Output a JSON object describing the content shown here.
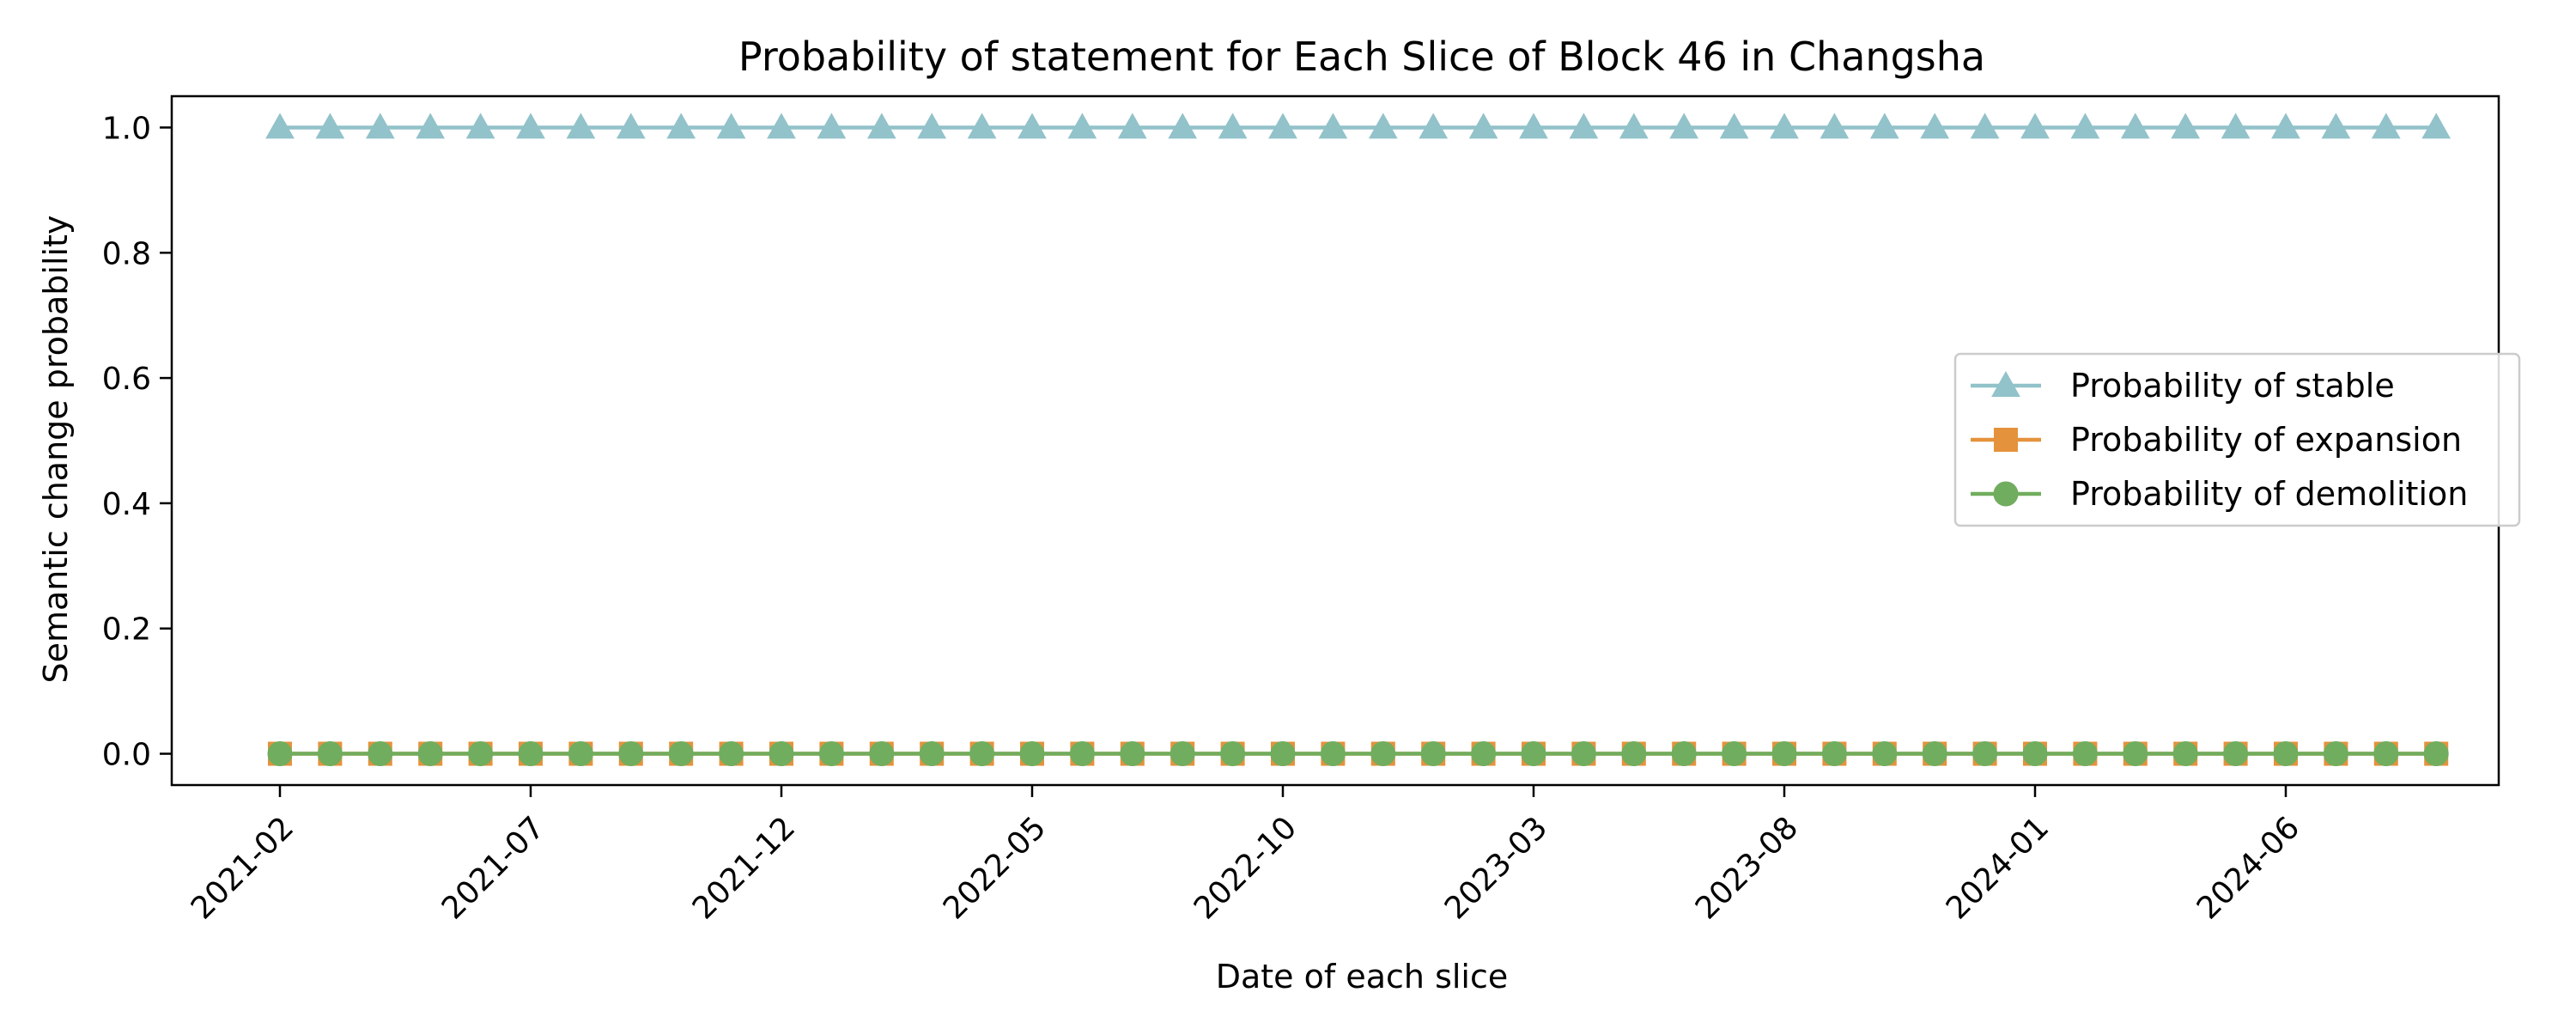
{
  "chart_data": {
    "type": "line",
    "title": "Probability of statement for Each Slice of Block 46 in Changsha",
    "xlabel": "Date of each slice",
    "ylabel": "Semantic change probability",
    "x": [
      "2021-02",
      "2021-03",
      "2021-04",
      "2021-05",
      "2021-06",
      "2021-07",
      "2021-08",
      "2021-09",
      "2021-10",
      "2021-11",
      "2021-12",
      "2022-01",
      "2022-02",
      "2022-03",
      "2022-04",
      "2022-05",
      "2022-06",
      "2022-07",
      "2022-08",
      "2022-09",
      "2022-10",
      "2022-11",
      "2022-12",
      "2023-01",
      "2023-02",
      "2023-03",
      "2023-04",
      "2023-05",
      "2023-06",
      "2023-07",
      "2023-08",
      "2023-09",
      "2023-10",
      "2023-11",
      "2023-12",
      "2024-01",
      "2024-02",
      "2024-03",
      "2024-04",
      "2024-05",
      "2024-06",
      "2024-07",
      "2024-08",
      "2024-09"
    ],
    "x_ticks": [
      "2021-02",
      "2021-07",
      "2021-12",
      "2022-05",
      "2022-10",
      "2023-03",
      "2023-08",
      "2024-01",
      "2024-06"
    ],
    "ylim": [
      -0.05,
      1.05
    ],
    "y_ticks": [
      "0.0",
      "0.2",
      "0.4",
      "0.6",
      "0.8",
      "1.0"
    ],
    "grid": false,
    "legend_position": "center-right",
    "series": [
      {
        "name": "Probability of stable",
        "marker": "triangle",
        "color": "#92c2ca",
        "values": [
          1,
          1,
          1,
          1,
          1,
          1,
          1,
          1,
          1,
          1,
          1,
          1,
          1,
          1,
          1,
          1,
          1,
          1,
          1,
          1,
          1,
          1,
          1,
          1,
          1,
          1,
          1,
          1,
          1,
          1,
          1,
          1,
          1,
          1,
          1,
          1,
          1,
          1,
          1,
          1,
          1,
          1,
          1,
          1
        ]
      },
      {
        "name": "Probability of expansion",
        "marker": "square",
        "color": "#e5923c",
        "values": [
          0,
          0,
          0,
          0,
          0,
          0,
          0,
          0,
          0,
          0,
          0,
          0,
          0,
          0,
          0,
          0,
          0,
          0,
          0,
          0,
          0,
          0,
          0,
          0,
          0,
          0,
          0,
          0,
          0,
          0,
          0,
          0,
          0,
          0,
          0,
          0,
          0,
          0,
          0,
          0,
          0,
          0,
          0,
          0
        ]
      },
      {
        "name": "Probability of demolition",
        "marker": "circle",
        "color": "#71ad5e",
        "values": [
          0,
          0,
          0,
          0,
          0,
          0,
          0,
          0,
          0,
          0,
          0,
          0,
          0,
          0,
          0,
          0,
          0,
          0,
          0,
          0,
          0,
          0,
          0,
          0,
          0,
          0,
          0,
          0,
          0,
          0,
          0,
          0,
          0,
          0,
          0,
          0,
          0,
          0,
          0,
          0,
          0,
          0,
          0,
          0
        ]
      }
    ]
  }
}
